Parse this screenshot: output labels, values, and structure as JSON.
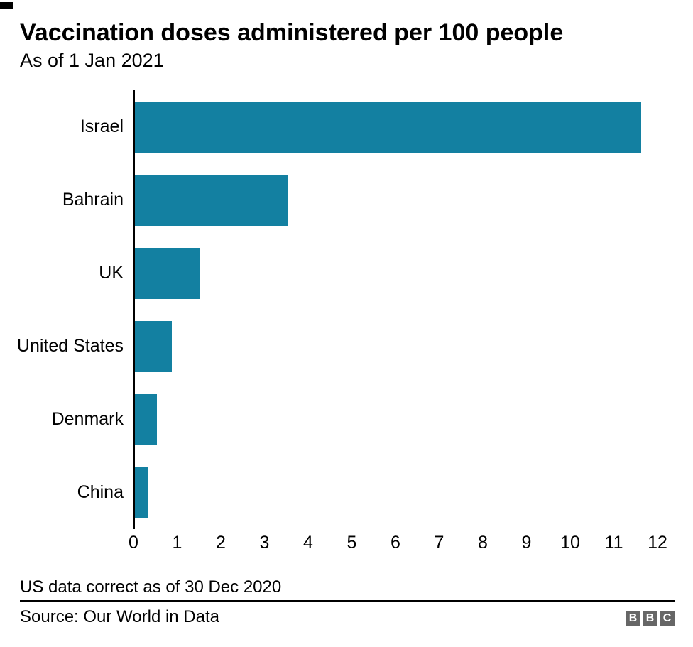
{
  "header": {
    "title": "Vaccination doses administered per 100 people",
    "subtitle": "As of 1 Jan 2021"
  },
  "chart_data": {
    "type": "bar",
    "orientation": "horizontal",
    "title": "Vaccination doses administered per 100 people",
    "subtitle": "As of 1 Jan 2021",
    "categories": [
      "Israel",
      "Bahrain",
      "UK",
      "United States",
      "Denmark",
      "China"
    ],
    "values": [
      11.6,
      3.5,
      1.5,
      0.85,
      0.5,
      0.3
    ],
    "xlabel": "",
    "ylabel": "",
    "xlim": [
      0,
      12
    ],
    "xticks": [
      0,
      1,
      2,
      3,
      4,
      5,
      6,
      7,
      8,
      9,
      10,
      11,
      12
    ],
    "grid": false,
    "legend": false,
    "bar_color": "#1380a1"
  },
  "footer": {
    "note": "US data correct as of 30 Dec 2020",
    "source": "Source: Our World in Data",
    "bbc_letters": [
      "B",
      "B",
      "C"
    ]
  },
  "colors": {
    "bar": "#1380a1",
    "axis": "#000000",
    "text": "#000000",
    "bbc_block": "#666666"
  }
}
